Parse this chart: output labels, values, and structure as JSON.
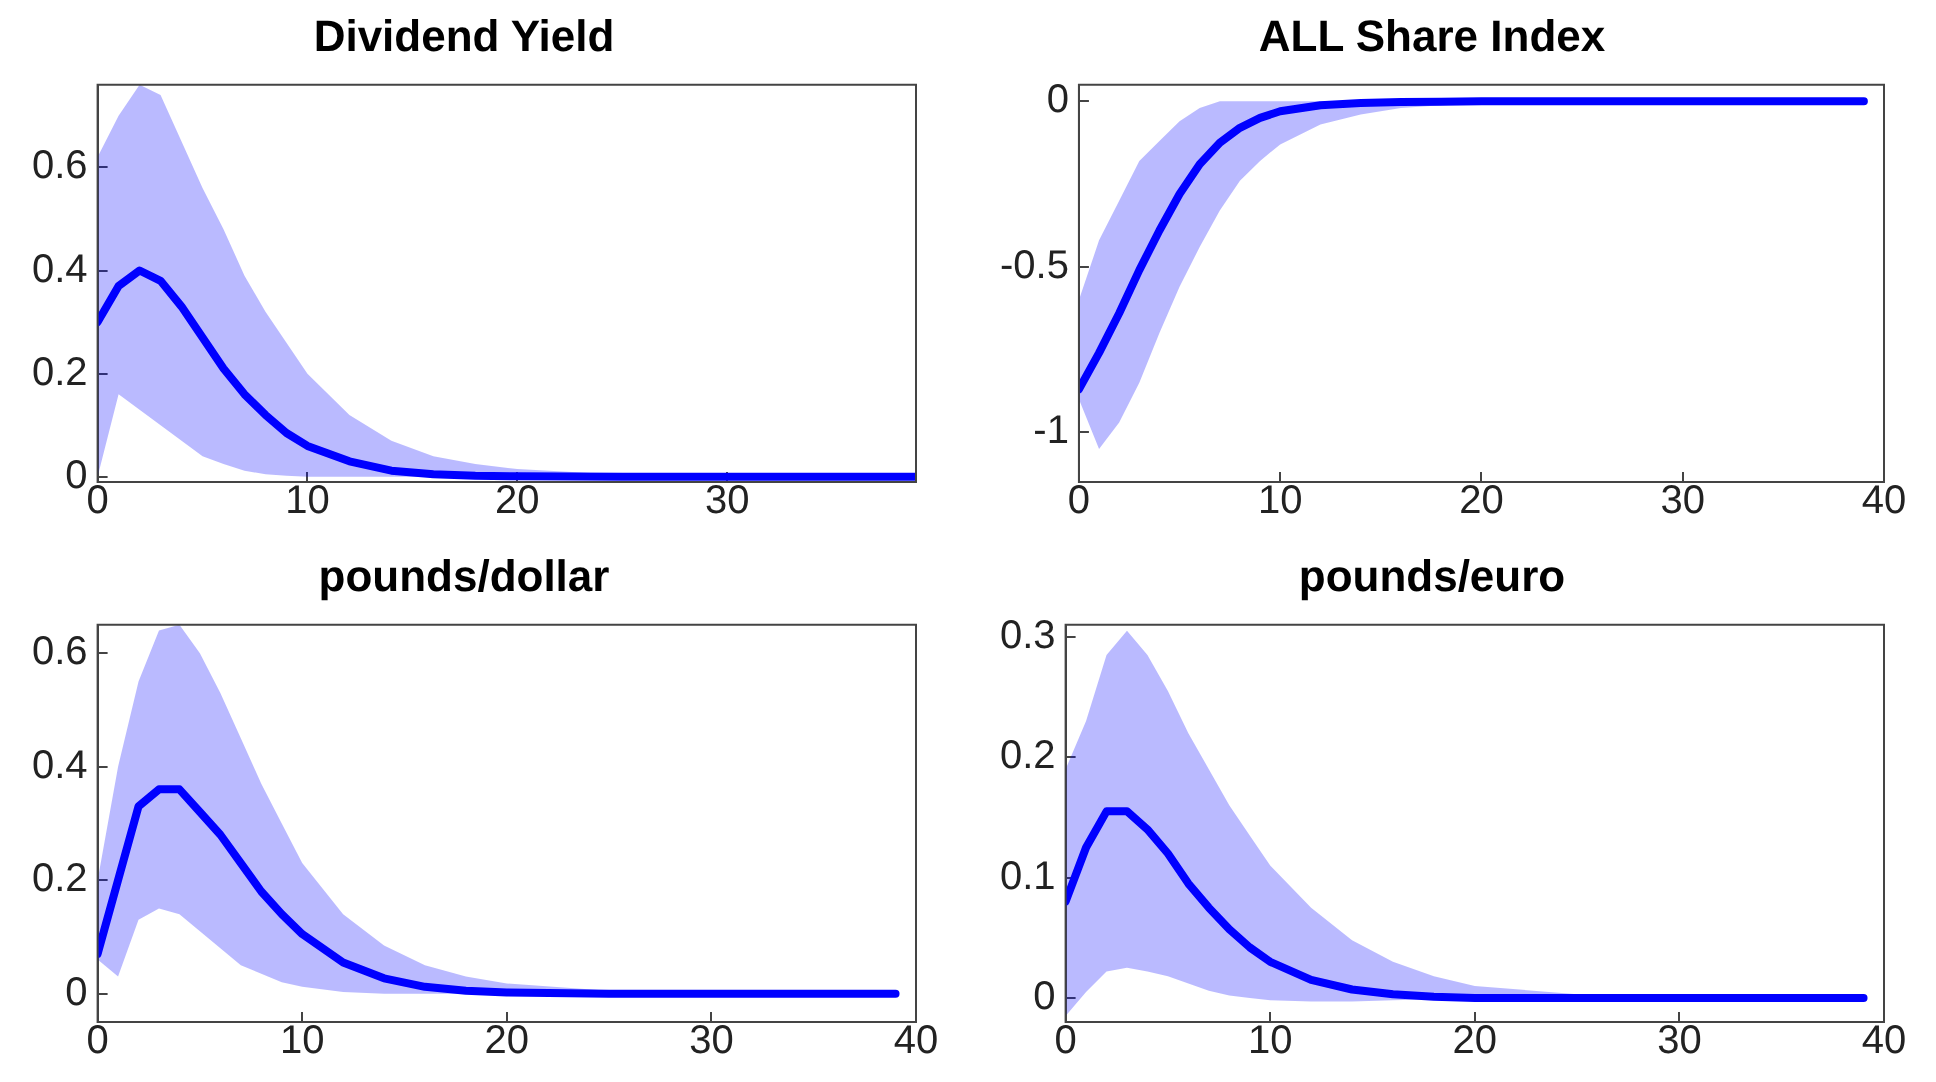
{
  "chart_data": [
    {
      "type": "line",
      "title": "Dividend Yield",
      "x": [
        0,
        1,
        2,
        3,
        4,
        5,
        6,
        7,
        8,
        9,
        10,
        12,
        14,
        16,
        18,
        20,
        25,
        30,
        35,
        39
      ],
      "xlim": [
        0,
        39
      ],
      "xticks": [
        0,
        10,
        20,
        30
      ],
      "ylim": [
        -0.01,
        0.76
      ],
      "yticks": [
        0,
        0.2,
        0.4,
        0.6
      ],
      "grid": false,
      "legend": false,
      "series": [
        {
          "color": "#0000ff",
          "values": [
            0.3,
            0.37,
            0.4,
            0.38,
            0.33,
            0.27,
            0.21,
            0.16,
            0.12,
            0.085,
            0.06,
            0.03,
            0.012,
            0.005,
            0.002,
            0.001,
            0,
            0,
            0,
            0
          ],
          "upper": [
            0.62,
            0.7,
            0.76,
            0.74,
            0.65,
            0.56,
            0.48,
            0.39,
            0.32,
            0.26,
            0.2,
            0.12,
            0.07,
            0.04,
            0.025,
            0.015,
            0.004,
            0.001,
            0,
            0
          ],
          "lower": [
            0.0,
            0.16,
            0.13,
            0.1,
            0.07,
            0.04,
            0.025,
            0.012,
            0.005,
            0.002,
            0,
            0,
            0,
            0,
            0,
            0,
            0,
            0,
            0,
            0
          ]
        }
      ]
    },
    {
      "type": "line",
      "title": "ALL Share Index",
      "x": [
        0,
        1,
        2,
        3,
        4,
        5,
        6,
        7,
        8,
        9,
        10,
        12,
        14,
        16,
        18,
        20,
        25,
        30,
        35,
        39
      ],
      "xlim": [
        0,
        40
      ],
      "xticks": [
        0,
        10,
        20,
        30,
        40
      ],
      "ylim": [
        -1.15,
        0.05
      ],
      "yticks": [
        -1,
        -0.5,
        0
      ],
      "grid": false,
      "legend": false,
      "series": [
        {
          "color": "#0000ff",
          "values": [
            -0.87,
            -0.76,
            -0.64,
            -0.51,
            -0.39,
            -0.28,
            -0.19,
            -0.125,
            -0.08,
            -0.05,
            -0.03,
            -0.012,
            -0.005,
            -0.002,
            -0.001,
            0,
            0,
            0,
            0,
            0
          ],
          "upper": [
            -0.6,
            -0.42,
            -0.3,
            -0.18,
            -0.12,
            -0.06,
            -0.02,
            0,
            0,
            0,
            0,
            0,
            0,
            0,
            0,
            0,
            0,
            0,
            0,
            0
          ],
          "lower": [
            -0.9,
            -1.05,
            -0.97,
            -0.85,
            -0.7,
            -0.56,
            -0.44,
            -0.33,
            -0.24,
            -0.18,
            -0.13,
            -0.07,
            -0.04,
            -0.02,
            -0.012,
            -0.007,
            -0.002,
            0,
            0,
            0
          ]
        }
      ]
    },
    {
      "type": "line",
      "title": "pounds/dollar",
      "x": [
        0,
        1,
        2,
        3,
        4,
        5,
        6,
        7,
        8,
        9,
        10,
        12,
        14,
        16,
        18,
        20,
        25,
        30,
        35,
        39
      ],
      "xlim": [
        0,
        40
      ],
      "xticks": [
        0,
        10,
        20,
        30,
        40
      ],
      "ylim": [
        -0.05,
        0.65
      ],
      "yticks": [
        0,
        0.2,
        0.4,
        0.6
      ],
      "grid": false,
      "legend": false,
      "series": [
        {
          "color": "#0000ff",
          "values": [
            0.07,
            0.2,
            0.33,
            0.36,
            0.36,
            0.32,
            0.28,
            0.23,
            0.18,
            0.14,
            0.105,
            0.055,
            0.027,
            0.012,
            0.005,
            0.002,
            0,
            0,
            0,
            0
          ],
          "upper": [
            0.2,
            0.4,
            0.55,
            0.64,
            0.65,
            0.6,
            0.53,
            0.45,
            0.37,
            0.3,
            0.23,
            0.14,
            0.085,
            0.05,
            0.03,
            0.018,
            0.005,
            0.001,
            0,
            0
          ],
          "lower": [
            0.06,
            0.03,
            0.13,
            0.15,
            0.14,
            0.11,
            0.08,
            0.05,
            0.035,
            0.02,
            0.012,
            0.003,
            0,
            0,
            0,
            0,
            0,
            0,
            0,
            0
          ]
        }
      ]
    },
    {
      "type": "line",
      "title": "pounds/euro",
      "x": [
        0,
        1,
        2,
        3,
        4,
        5,
        6,
        7,
        8,
        9,
        10,
        12,
        14,
        16,
        18,
        20,
        25,
        30,
        35,
        39
      ],
      "xlim": [
        0,
        40
      ],
      "xticks": [
        0,
        10,
        20,
        30,
        40
      ],
      "ylim": [
        -0.02,
        0.31
      ],
      "yticks": [
        0,
        0.1,
        0.2,
        0.3
      ],
      "grid": false,
      "legend": false,
      "series": [
        {
          "color": "#0000ff",
          "values": [
            0.08,
            0.125,
            0.155,
            0.155,
            0.14,
            0.12,
            0.095,
            0.075,
            0.057,
            0.042,
            0.03,
            0.015,
            0.007,
            0.003,
            0.001,
            0,
            0,
            0,
            0,
            0
          ],
          "upper": [
            0.19,
            0.23,
            0.285,
            0.305,
            0.285,
            0.255,
            0.22,
            0.19,
            0.16,
            0.135,
            0.11,
            0.075,
            0.048,
            0.03,
            0.018,
            0.01,
            0.003,
            0.001,
            0,
            0
          ],
          "lower": [
            -0.015,
            0.005,
            0.022,
            0.025,
            0.022,
            0.018,
            0.012,
            0.006,
            0.002,
            0,
            -0.002,
            -0.003,
            -0.003,
            -0.002,
            -0.001,
            0,
            0,
            0,
            0,
            0
          ]
        }
      ]
    }
  ]
}
